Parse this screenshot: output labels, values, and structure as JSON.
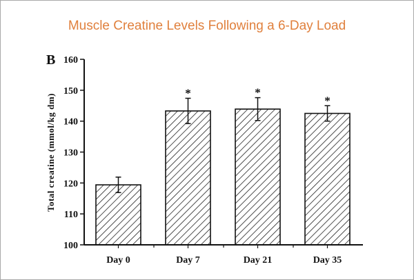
{
  "title": "Muscle Creatine Levels Following a 6-Day Load",
  "chart_data": {
    "type": "bar",
    "panel_label": "B",
    "title": "Muscle Creatine Levels Following a 6-Day Load",
    "xlabel": "",
    "ylabel": "Total creatine (mmol/kg dm)",
    "ylim": [
      100,
      160
    ],
    "yticks": [
      "100",
      "110",
      "120",
      "130",
      "140",
      "150",
      "160"
    ],
    "categories": [
      "Day 0",
      "Day 7",
      "Day 21",
      "Day 35"
    ],
    "values": [
      119.4,
      143.3,
      143.9,
      142.5
    ],
    "error": [
      2.5,
      4.1,
      3.7,
      2.5
    ],
    "significance": [
      "",
      "*",
      "*",
      "*"
    ],
    "bar_fill": "diagonal hatch",
    "grid": false,
    "legend": "none",
    "colors": {
      "title": "#e0803d",
      "bars": "#222222"
    }
  }
}
